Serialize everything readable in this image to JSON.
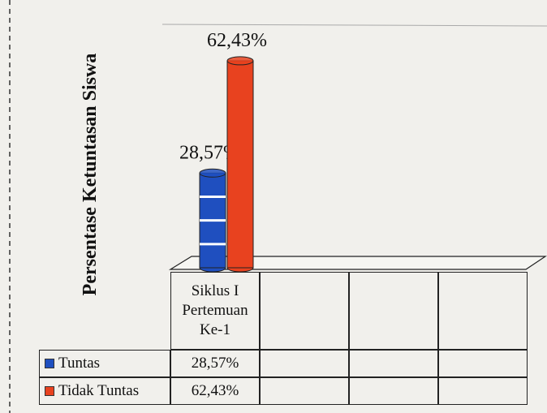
{
  "chart_data": {
    "type": "bar",
    "y_label": "Persentase Ketuntasan Siswa",
    "categories": [
      "Siklus I Pertemuan Ke-1",
      null,
      null,
      null
    ],
    "series": [
      {
        "name": "Tuntas",
        "color": "#1f4fbf",
        "values": [
          28.57,
          null,
          null,
          null
        ],
        "value_labels": [
          "28,57%",
          null,
          null,
          null
        ]
      },
      {
        "name": "Tidak Tuntas",
        "color": "#e8421f",
        "values": [
          62.43,
          null,
          null,
          null
        ],
        "value_labels": [
          "62,43%",
          null,
          null,
          null
        ]
      }
    ],
    "ylim": [
      0,
      70
    ]
  }
}
